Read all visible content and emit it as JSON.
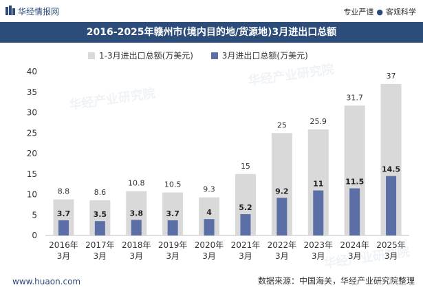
{
  "header": {
    "brand": "华经情报网",
    "slogan_left": "专业严谨",
    "slogan_sep": "●",
    "slogan_right": "客观科学",
    "title": "2016-2025年赣州市(境内目的地/货源地)3月进出口总额"
  },
  "footer": {
    "website": "www.huaon.com",
    "source": "数据来源：中国海关，华经产业研究院整理"
  },
  "watermark": "华经产业研究院",
  "colors": {
    "title_bg": "#2c4d79",
    "series_cumulative": "#d9d9d9",
    "series_month": "#5b6fa6",
    "brand": "#2d4a7a"
  },
  "chart_data": {
    "type": "bar",
    "categories": [
      "2016年\n3月",
      "2017年\n3月",
      "2018年\n3月",
      "2019年\n3月",
      "2020年\n3月",
      "2021年\n3月",
      "2022年\n3月",
      "2023年\n3月",
      "2024年\n3月",
      "2025年\n3月"
    ],
    "series": [
      {
        "name": "1-3月进出口总额(万美元)",
        "values": [
          8.8,
          8.6,
          10.8,
          10.5,
          9.3,
          15,
          25,
          25.9,
          31.7,
          37
        ]
      },
      {
        "name": "3月进出口总额(万美元)",
        "values": [
          3.7,
          3.5,
          3.8,
          3.7,
          4,
          5.2,
          9.2,
          11,
          11.5,
          14.5
        ]
      }
    ],
    "ylim": [
      0,
      40
    ],
    "yticks": [
      0,
      5,
      10,
      15,
      20,
      25,
      30,
      35,
      40
    ],
    "grid": false,
    "legend": "top"
  }
}
